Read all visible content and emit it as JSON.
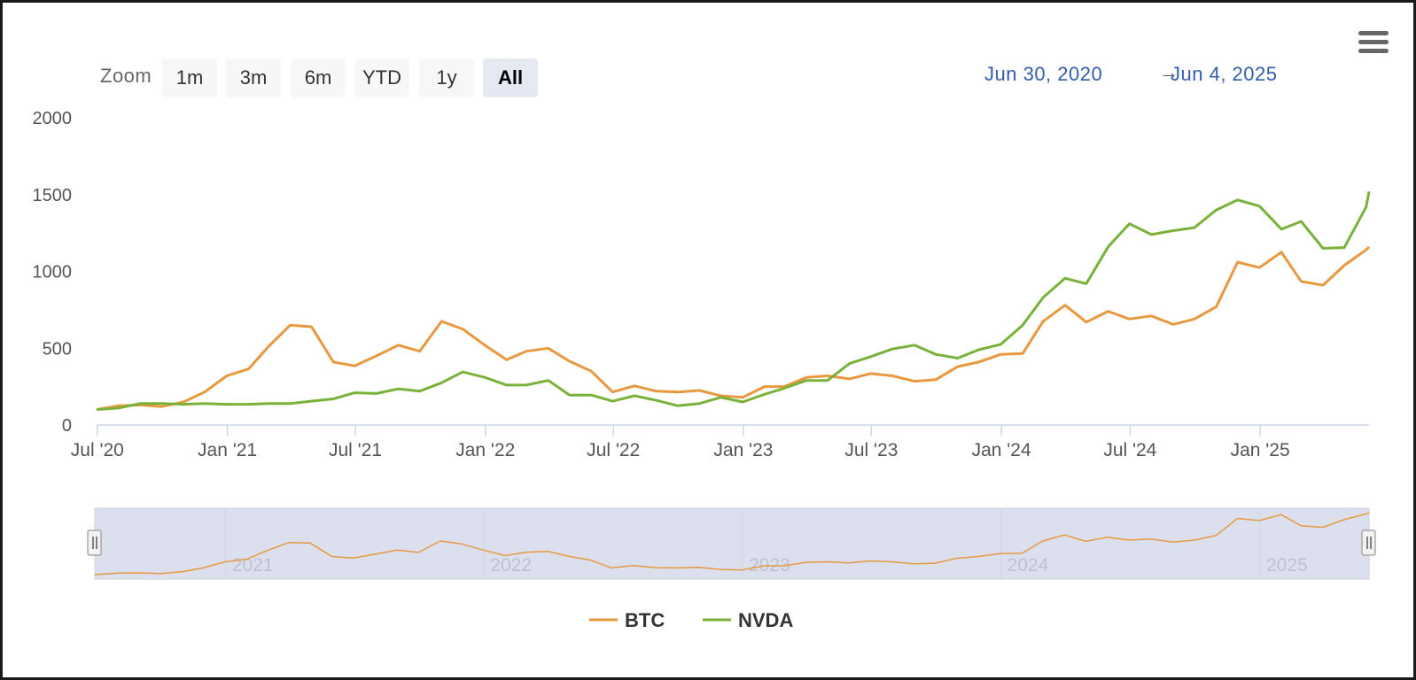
{
  "zoom": {
    "label": "Zoom",
    "buttons": [
      "1m",
      "3m",
      "6m",
      "YTD",
      "1y",
      "All"
    ],
    "active": "All"
  },
  "range": {
    "from": "Jun 30, 2020",
    "arrow": "→",
    "to": "Jun 4, 2025"
  },
  "menu_icon": "hamburger-menu-icon",
  "colors": {
    "BTC": "#e8993f",
    "NVDA": "#79b23a",
    "navigator_mask": "#d4daec",
    "range_text": "#335cad"
  },
  "chart_data": {
    "type": "line",
    "title": "",
    "xlabel": "",
    "ylabel": "",
    "ylim": [
      0,
      2000
    ],
    "yticks": [
      0,
      500,
      1000,
      1500,
      2000
    ],
    "x_range": [
      "2020-06-30",
      "2025-06-04"
    ],
    "xticks": [
      {
        "date": "2020-07-01",
        "label": "Jul '20"
      },
      {
        "date": "2021-01-01",
        "label": "Jan '21"
      },
      {
        "date": "2021-07-01",
        "label": "Jul '21"
      },
      {
        "date": "2022-01-01",
        "label": "Jan '22"
      },
      {
        "date": "2022-07-01",
        "label": "Jul '22"
      },
      {
        "date": "2023-01-01",
        "label": "Jan '23"
      },
      {
        "date": "2023-07-01",
        "label": "Jul '23"
      },
      {
        "date": "2024-01-01",
        "label": "Jan '24"
      },
      {
        "date": "2024-07-01",
        "label": "Jul '24"
      },
      {
        "date": "2025-01-01",
        "label": "Jan '25"
      }
    ],
    "navigator_ticks": [
      {
        "date": "2021-01-01",
        "label": "2021"
      },
      {
        "date": "2022-01-01",
        "label": "2022"
      },
      {
        "date": "2023-01-01",
        "label": "2023"
      },
      {
        "date": "2024-01-01",
        "label": "2024"
      },
      {
        "date": "2025-01-01",
        "label": "2025"
      }
    ],
    "grid": false,
    "legend": "bottom-center",
    "series": [
      {
        "name": "BTC",
        "x": [
          "2020-06-30",
          "2020-07-31",
          "2020-08-31",
          "2020-09-30",
          "2020-10-31",
          "2020-11-30",
          "2020-12-31",
          "2021-01-31",
          "2021-02-28",
          "2021-03-31",
          "2021-04-30",
          "2021-05-31",
          "2021-06-30",
          "2021-07-31",
          "2021-08-31",
          "2021-09-30",
          "2021-10-31",
          "2021-11-30",
          "2021-12-31",
          "2022-01-31",
          "2022-02-28",
          "2022-03-31",
          "2022-04-30",
          "2022-05-31",
          "2022-06-30",
          "2022-07-31",
          "2022-08-31",
          "2022-09-30",
          "2022-10-31",
          "2022-11-30",
          "2022-12-31",
          "2023-01-31",
          "2023-02-28",
          "2023-03-31",
          "2023-04-30",
          "2023-05-31",
          "2023-06-30",
          "2023-07-31",
          "2023-08-31",
          "2023-09-30",
          "2023-10-31",
          "2023-11-30",
          "2023-12-31",
          "2024-01-31",
          "2024-02-29",
          "2024-03-31",
          "2024-04-30",
          "2024-05-31",
          "2024-06-30",
          "2024-07-31",
          "2024-08-31",
          "2024-09-30",
          "2024-10-31",
          "2024-11-30",
          "2024-12-31",
          "2025-01-31",
          "2025-02-28",
          "2025-03-31",
          "2025-04-30",
          "2025-05-31",
          "2025-06-04"
        ],
        "values": [
          100,
          125,
          130,
          120,
          150,
          215,
          320,
          365,
          510,
          650,
          640,
          410,
          385,
          450,
          520,
          480,
          675,
          625,
          520,
          425,
          480,
          500,
          415,
          350,
          215,
          255,
          220,
          215,
          225,
          190,
          180,
          250,
          250,
          310,
          320,
          300,
          335,
          320,
          285,
          295,
          380,
          410,
          460,
          465,
          675,
          780,
          670,
          740,
          690,
          710,
          655,
          690,
          770,
          1060,
          1025,
          1125,
          935,
          910,
          1040,
          1140,
          1160
        ]
      },
      {
        "name": "NVDA",
        "x": [
          "2020-06-30",
          "2020-07-31",
          "2020-08-31",
          "2020-09-30",
          "2020-10-31",
          "2020-11-30",
          "2020-12-31",
          "2021-01-31",
          "2021-02-28",
          "2021-03-31",
          "2021-04-30",
          "2021-05-31",
          "2021-06-30",
          "2021-07-31",
          "2021-08-31",
          "2021-09-30",
          "2021-10-31",
          "2021-11-30",
          "2021-12-31",
          "2022-01-31",
          "2022-02-28",
          "2022-03-31",
          "2022-04-30",
          "2022-05-31",
          "2022-06-30",
          "2022-07-31",
          "2022-08-31",
          "2022-09-30",
          "2022-10-31",
          "2022-11-30",
          "2022-12-31",
          "2023-01-31",
          "2023-02-28",
          "2023-03-31",
          "2023-04-30",
          "2023-05-31",
          "2023-06-30",
          "2023-07-31",
          "2023-08-31",
          "2023-09-30",
          "2023-10-31",
          "2023-11-30",
          "2023-12-31",
          "2024-01-31",
          "2024-02-29",
          "2024-03-31",
          "2024-04-30",
          "2024-05-31",
          "2024-06-30",
          "2024-07-31",
          "2024-08-31",
          "2024-09-30",
          "2024-10-31",
          "2024-11-30",
          "2024-12-31",
          "2025-01-31",
          "2025-02-28",
          "2025-03-31",
          "2025-04-30",
          "2025-05-31",
          "2025-06-04"
        ],
        "values": [
          100,
          110,
          140,
          140,
          135,
          140,
          135,
          135,
          140,
          140,
          155,
          170,
          210,
          205,
          235,
          220,
          275,
          345,
          310,
          260,
          260,
          290,
          195,
          195,
          155,
          190,
          160,
          125,
          140,
          180,
          150,
          200,
          240,
          290,
          290,
          400,
          445,
          495,
          520,
          460,
          435,
          490,
          525,
          650,
          830,
          955,
          920,
          1160,
          1310,
          1240,
          1265,
          1285,
          1400,
          1465,
          1425,
          1275,
          1325,
          1150,
          1155,
          1420,
          1520
        ]
      }
    ]
  }
}
